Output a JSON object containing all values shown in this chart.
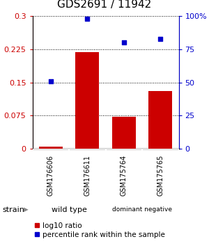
{
  "title": "GDS2691 / 11942",
  "samples": [
    "GSM176606",
    "GSM176611",
    "GSM175764",
    "GSM175765"
  ],
  "log10_ratio": [
    0.005,
    0.218,
    0.073,
    0.13
  ],
  "percentile_rank": [
    51,
    98,
    80,
    83
  ],
  "groups": [
    {
      "label": "wild type",
      "cols": [
        0,
        1
      ],
      "color": "#90EE90"
    },
    {
      "label": "dominant negative",
      "cols": [
        2,
        3
      ],
      "color": "#90EE90"
    }
  ],
  "bar_color": "#CC0000",
  "dot_color": "#0000CC",
  "left_yticks": [
    0,
    0.075,
    0.15,
    0.225,
    0.3
  ],
  "right_yticks": [
    0,
    25,
    50,
    75,
    100
  ],
  "left_ylim": [
    0,
    0.3
  ],
  "right_ylim": [
    0,
    100
  ],
  "background_color": "#ffffff",
  "plot_bg_color": "#ffffff",
  "sample_box_color": "#cccccc",
  "title_fontsize": 11,
  "tick_fontsize": 8,
  "sample_fontsize": 7,
  "group_fontsize": 8,
  "legend_fontsize": 7.5
}
